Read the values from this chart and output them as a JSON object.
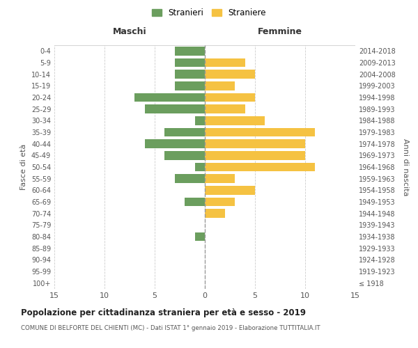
{
  "age_groups": [
    "100+",
    "95-99",
    "90-94",
    "85-89",
    "80-84",
    "75-79",
    "70-74",
    "65-69",
    "60-64",
    "55-59",
    "50-54",
    "45-49",
    "40-44",
    "35-39",
    "30-34",
    "25-29",
    "20-24",
    "15-19",
    "10-14",
    "5-9",
    "0-4"
  ],
  "birth_years": [
    "≤ 1918",
    "1919-1923",
    "1924-1928",
    "1929-1933",
    "1934-1938",
    "1939-1943",
    "1944-1948",
    "1949-1953",
    "1954-1958",
    "1959-1963",
    "1964-1968",
    "1969-1973",
    "1974-1978",
    "1979-1983",
    "1984-1988",
    "1989-1993",
    "1994-1998",
    "1999-2003",
    "2004-2008",
    "2009-2013",
    "2014-2018"
  ],
  "males": [
    0,
    0,
    0,
    0,
    1,
    0,
    0,
    2,
    0,
    3,
    1,
    4,
    6,
    4,
    1,
    6,
    7,
    3,
    3,
    3,
    3
  ],
  "females": [
    0,
    0,
    0,
    0,
    0,
    0,
    2,
    3,
    5,
    3,
    11,
    10,
    10,
    11,
    6,
    4,
    5,
    3,
    5,
    4,
    0
  ],
  "male_color": "#6b9e5e",
  "female_color": "#f5c242",
  "title": "Popolazione per cittadinanza straniera per età e sesso - 2019",
  "subtitle": "COMUNE DI BELFORTE DEL CHIENTI (MC) - Dati ISTAT 1° gennaio 2019 - Elaborazione TUTTITALIA.IT",
  "xlabel_left": "Maschi",
  "xlabel_right": "Femmine",
  "ylabel_left": "Fasce di età",
  "ylabel_right": "Anni di nascita",
  "legend_male": "Stranieri",
  "legend_female": "Straniere",
  "xlim": 15,
  "background_color": "#ffffff",
  "grid_color": "#cccccc"
}
